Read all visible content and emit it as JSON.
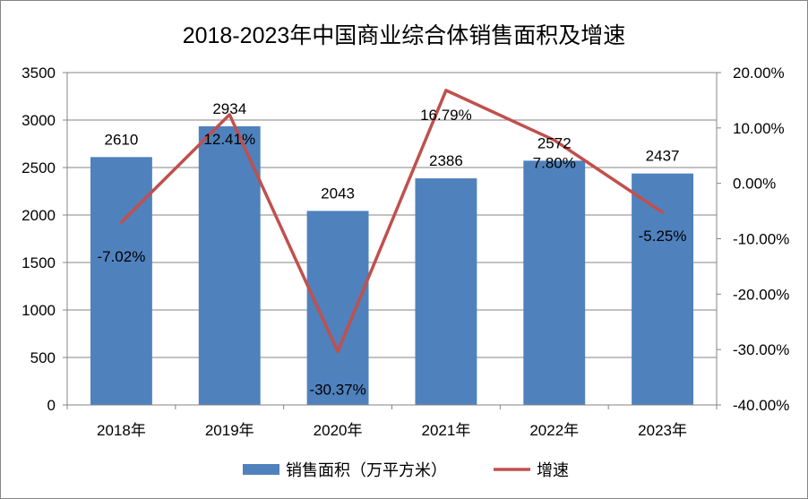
{
  "chart_data": {
    "type": "bar",
    "title": "2018-2023年中国商业综合体销售面积及增速",
    "categories": [
      "2018年",
      "2019年",
      "2020年",
      "2021年",
      "2022年",
      "2023年"
    ],
    "series": [
      {
        "name": "销售面积（万平方米）",
        "type": "bar",
        "axis": "left",
        "color": "#4F81BD",
        "values": [
          2610,
          2934,
          2043,
          2386,
          2572,
          2437
        ],
        "labels": [
          "2610",
          "2934",
          "2043",
          "2386",
          "2572",
          "2437"
        ]
      },
      {
        "name": "增速",
        "type": "line",
        "axis": "right",
        "color": "#C0504D",
        "values": [
          -7.02,
          12.41,
          -30.37,
          16.79,
          7.8,
          -5.25
        ],
        "labels": [
          "-7.02%",
          "12.41%",
          "-30.37%",
          "16.79%",
          "7.80%",
          "-5.25%"
        ]
      }
    ],
    "y_left": {
      "range": [
        0,
        3500
      ],
      "ticks": [
        0,
        500,
        1000,
        1500,
        2000,
        2500,
        3000,
        3500
      ],
      "tick_labels": [
        "0",
        "500",
        "1000",
        "1500",
        "2000",
        "2500",
        "3000",
        "3500"
      ]
    },
    "y_right": {
      "range": [
        -40,
        20
      ],
      "ticks": [
        -40,
        -30,
        -20,
        -10,
        0,
        10,
        20
      ],
      "tick_labels": [
        "-40.00%",
        "-30.00%",
        "-20.00%",
        "-10.00%",
        "0.00%",
        "10.00%",
        "20.00%"
      ]
    },
    "grid": true,
    "legend_position": "bottom"
  }
}
